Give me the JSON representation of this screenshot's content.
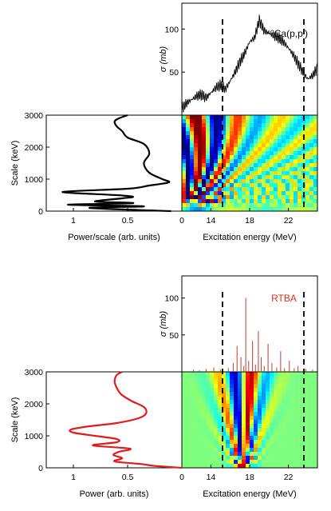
{
  "chart_data": [
    {
      "id": "exp",
      "panels": [
        {
          "type": "line",
          "role": "cross-section",
          "annotation": "⁴⁰Ca(p,p′)",
          "xlabel": "",
          "ylabel": "σ (mb)",
          "xlim": [
            11,
            25
          ],
          "ylim": [
            0,
            130
          ],
          "yticks": [
            "50",
            "100"
          ],
          "color": "#000000",
          "dashed_lines_x": [
            15.2,
            23.6
          ],
          "x": [
            11.0,
            11.5,
            12.0,
            12.5,
            13.0,
            13.5,
            14.0,
            14.5,
            15.0,
            15.5,
            16.0,
            16.5,
            17.0,
            17.5,
            18.0,
            18.5,
            19.0,
            19.5,
            20.0,
            20.5,
            21.0,
            21.5,
            22.0,
            22.5,
            23.0,
            23.5,
            24.0,
            24.5,
            25.0
          ],
          "y": [
            8,
            14,
            18,
            22,
            24,
            20,
            26,
            32,
            35,
            30,
            40,
            50,
            62,
            72,
            85,
            90,
            110,
            98,
            95,
            92,
            90,
            85,
            78,
            70,
            60,
            50,
            42,
            46,
            55
          ]
        },
        {
          "type": "line",
          "role": "power-spectrum",
          "xlabel": "Power/scale (arb. units)",
          "ylabel": "Scale (keV)",
          "xlim": [
            1.25,
            0
          ],
          "ylim": [
            0,
            3000
          ],
          "xticks": [
            "1",
            "0.5",
            "0"
          ],
          "yticks": [
            "0",
            "1000",
            "2000",
            "3000"
          ],
          "color": "#000000",
          "scale": [
            0,
            100,
            150,
            200,
            250,
            300,
            400,
            450,
            500,
            600,
            700,
            800,
            900,
            1000,
            1200,
            1500,
            1800,
            2100,
            2300,
            2500,
            2650,
            2800,
            2900,
            3000
          ],
          "power": [
            0.1,
            0.85,
            0.35,
            1.05,
            0.45,
            0.8,
            0.55,
            0.45,
            0.6,
            1.1,
            0.5,
            0.3,
            0.12,
            0.18,
            0.3,
            0.35,
            0.3,
            0.35,
            0.5,
            0.55,
            0.6,
            0.62,
            0.58,
            0.5
          ]
        },
        {
          "type": "heatmap",
          "role": "wavelet-coefficients",
          "xlabel": "Excitation energy (MeV)",
          "xlim": [
            11,
            25
          ],
          "ylim": [
            0,
            3000
          ],
          "xticks": [
            "14",
            "18",
            "22"
          ],
          "colormap": "jet"
        }
      ]
    },
    {
      "id": "rtba",
      "panels": [
        {
          "type": "line",
          "role": "cross-section",
          "annotation": "RTBA",
          "annotation_color": "#e32d1d",
          "xlabel": "",
          "ylabel": "σ (mb)",
          "xlim": [
            11,
            25
          ],
          "ylim": [
            0,
            130
          ],
          "yticks": [
            "50",
            "100"
          ],
          "color": "#c0392b",
          "dashed_lines_x": [
            15.2,
            23.6
          ],
          "x": [
            12.2,
            12.8,
            13.5,
            14.3,
            15.0,
            15.8,
            16.3,
            16.7,
            17.1,
            17.4,
            17.6,
            17.9,
            18.3,
            18.6,
            18.9,
            19.2,
            19.5,
            19.9,
            20.3,
            20.8,
            21.2,
            21.6,
            22.1,
            22.6,
            23.0,
            23.8,
            24.5
          ],
          "y": [
            3,
            2,
            4,
            6,
            3,
            5,
            12,
            35,
            20,
            8,
            100,
            15,
            42,
            10,
            55,
            20,
            8,
            38,
            12,
            6,
            28,
            5,
            15,
            5,
            8,
            4,
            3
          ]
        },
        {
          "type": "line",
          "role": "power-spectrum",
          "xlabel": "Power (arb. units)",
          "ylabel": "Scale (keV)",
          "xlim": [
            1.25,
            0
          ],
          "ylim": [
            0,
            3000
          ],
          "xticks": [
            "1",
            "0.5",
            "0"
          ],
          "yticks": [
            "0",
            "1000",
            "2000",
            "3000"
          ],
          "color": "#e31a1c",
          "scale": [
            0,
            60,
            120,
            200,
            300,
            400,
            500,
            600,
            700,
            800,
            900,
            1000,
            1100,
            1200,
            1300,
            1400,
            1550,
            1700,
            1900,
            2100,
            2300,
            2500,
            2700,
            2900,
            3000
          ],
          "power": [
            0.0,
            0.25,
            0.38,
            0.62,
            0.55,
            0.63,
            0.58,
            0.48,
            0.82,
            0.6,
            0.6,
            0.8,
            1.0,
            1.02,
            0.85,
            0.6,
            0.4,
            0.33,
            0.35,
            0.47,
            0.56,
            0.6,
            0.62,
            0.6,
            0.55
          ]
        },
        {
          "type": "heatmap",
          "role": "wavelet-coefficients",
          "xlabel": "Excitation energy (MeV)",
          "xlim": [
            11,
            25
          ],
          "ylim": [
            0,
            3000
          ],
          "xticks": [
            "14",
            "18",
            "22"
          ],
          "colormap": "jet"
        }
      ]
    }
  ]
}
